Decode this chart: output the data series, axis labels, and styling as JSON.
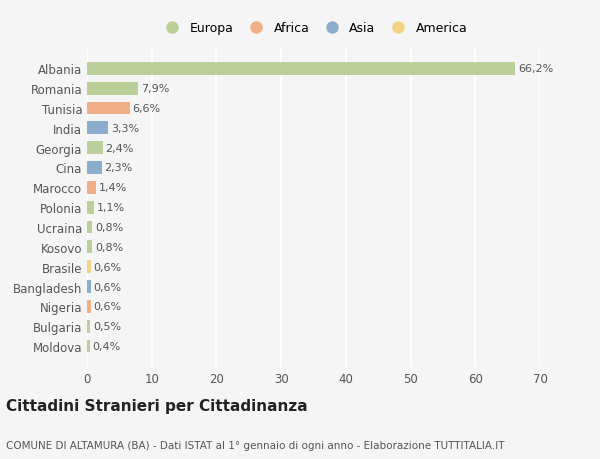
{
  "countries": [
    "Albania",
    "Romania",
    "Tunisia",
    "India",
    "Georgia",
    "Cina",
    "Marocco",
    "Polonia",
    "Ucraina",
    "Kosovo",
    "Brasile",
    "Bangladesh",
    "Nigeria",
    "Bulgaria",
    "Moldova"
  ],
  "values": [
    66.2,
    7.9,
    6.6,
    3.3,
    2.4,
    2.3,
    1.4,
    1.1,
    0.8,
    0.8,
    0.6,
    0.6,
    0.6,
    0.5,
    0.4
  ],
  "labels": [
    "66,2%",
    "7,9%",
    "6,6%",
    "3,3%",
    "2,4%",
    "2,3%",
    "1,4%",
    "1,1%",
    "0,8%",
    "0,8%",
    "0,6%",
    "0,6%",
    "0,6%",
    "0,5%",
    "0,4%"
  ],
  "continents": [
    "Europa",
    "Europa",
    "Africa",
    "Asia",
    "Europa",
    "Asia",
    "Africa",
    "Europa",
    "Europa",
    "Europa",
    "America",
    "Asia",
    "Africa",
    "Europa",
    "Europa"
  ],
  "continent_colors": {
    "Europa": "#b5cc8e",
    "Africa": "#f0a87a",
    "Asia": "#7ea6c9",
    "America": "#f0d07a"
  },
  "legend_order": [
    "Europa",
    "Africa",
    "Asia",
    "America"
  ],
  "xlim": [
    0,
    70
  ],
  "xticks": [
    0,
    10,
    20,
    30,
    40,
    50,
    60,
    70
  ],
  "title": "Cittadini Stranieri per Cittadinanza",
  "subtitle": "COMUNE DI ALTAMURA (BA) - Dati ISTAT al 1° gennaio di ogni anno - Elaborazione TUTTITALIA.IT",
  "bg_color": "#f5f5f5",
  "grid_color": "#ffffff",
  "bar_height": 0.65,
  "label_fontsize": 8,
  "ytick_fontsize": 8.5,
  "xtick_fontsize": 8.5,
  "title_fontsize": 11,
  "subtitle_fontsize": 7.5
}
